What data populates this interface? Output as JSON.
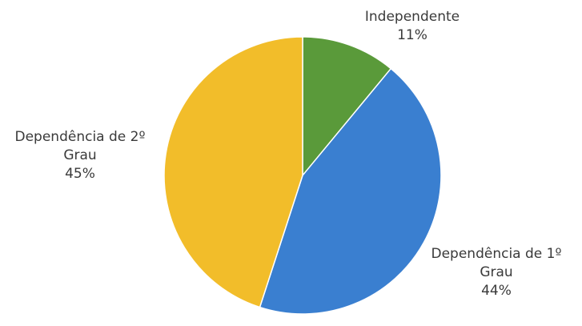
{
  "chart_data": {
    "type": "pie",
    "title": "",
    "slices": [
      {
        "label_lines": [
          "Independente"
        ],
        "pct_label": "11%",
        "value": 11,
        "color": "#5a9a3a"
      },
      {
        "label_lines": [
          "Dependência de 1º",
          "Grau"
        ],
        "pct_label": "44%",
        "value": 44,
        "color": "#3a7fd0"
      },
      {
        "label_lines": [
          "Dependência de 2º",
          "Grau"
        ],
        "pct_label": "45%",
        "value": 45,
        "color": "#f2bd2a"
      }
    ]
  }
}
